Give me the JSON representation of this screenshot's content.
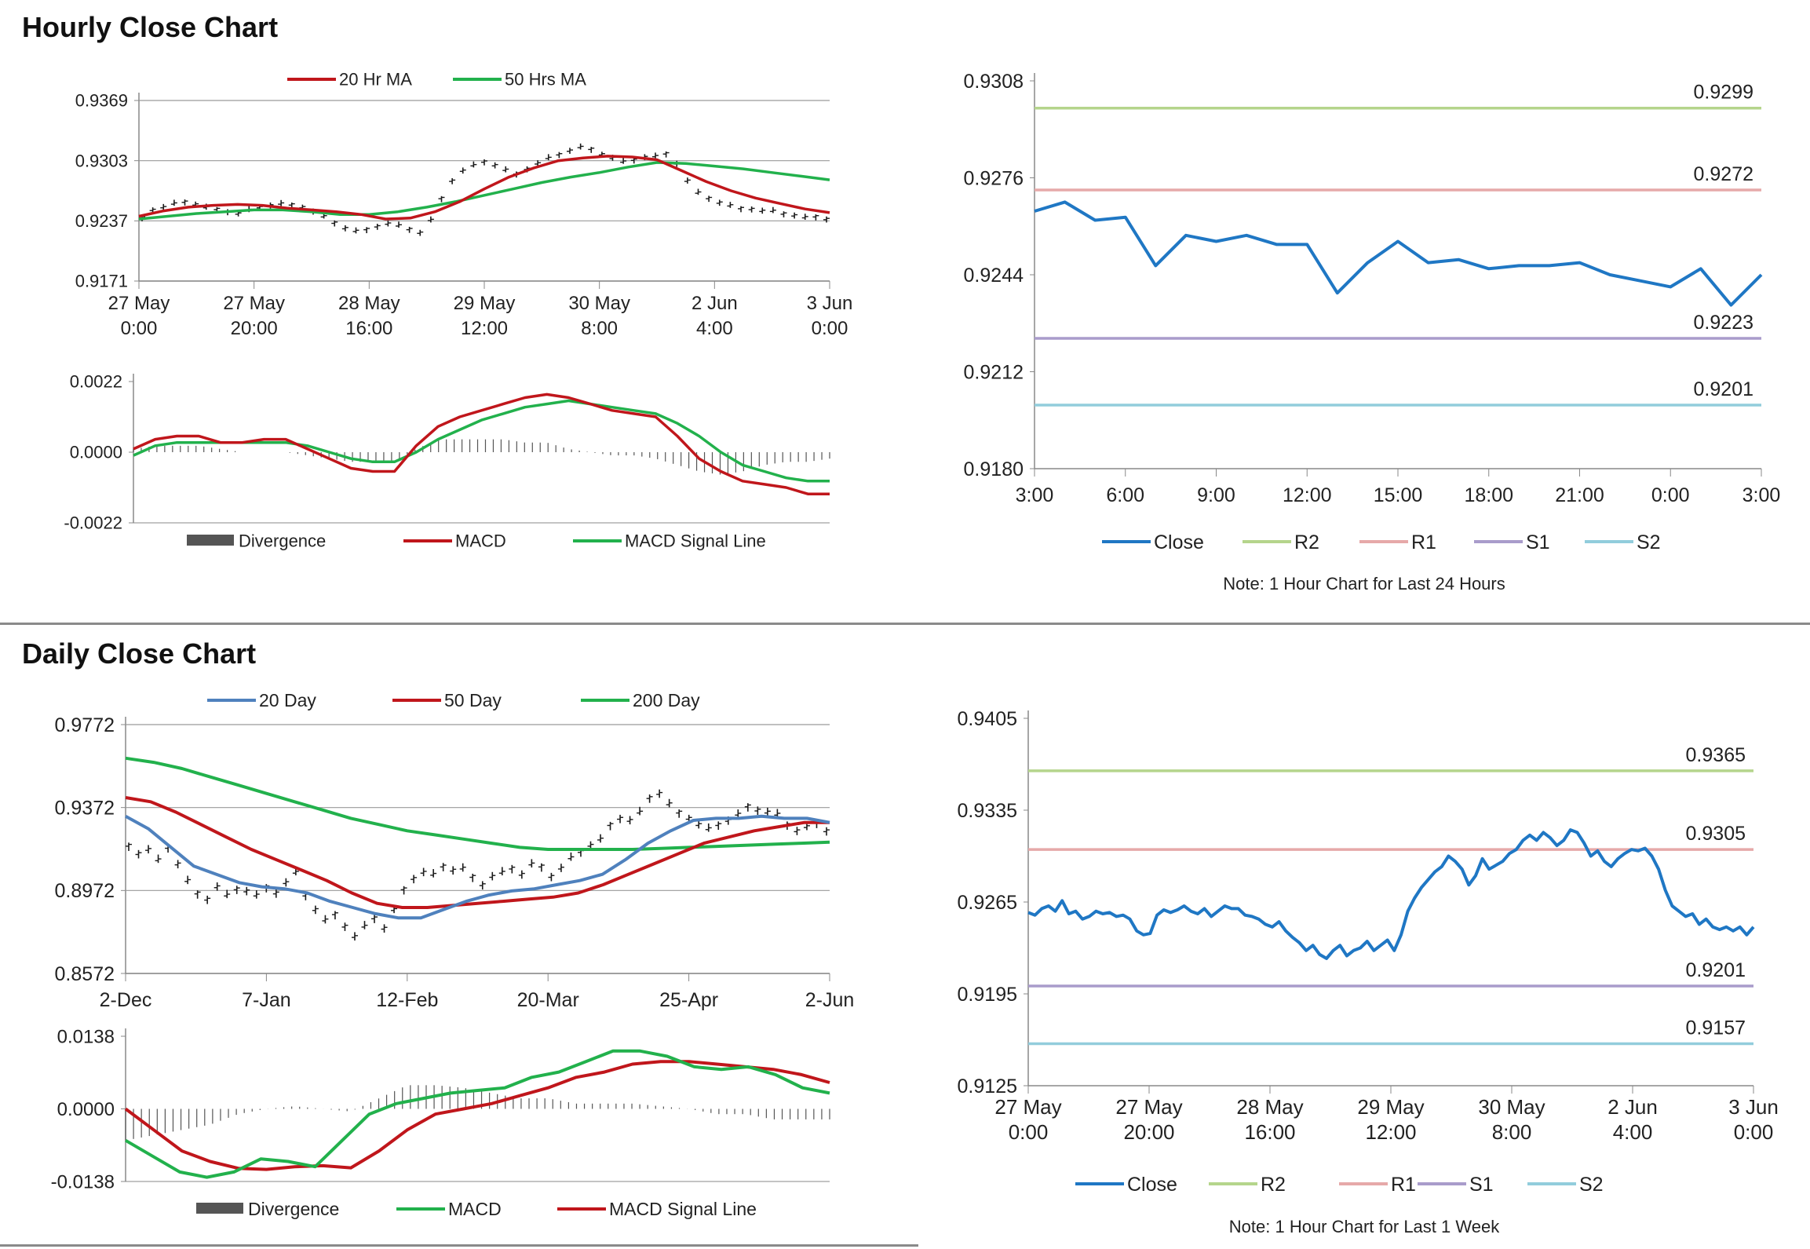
{
  "sections": {
    "hourly_title": "Hourly Close Chart",
    "daily_title": "Daily Close Chart"
  },
  "chart_data": [
    {
      "id": "hourly_price",
      "type": "line",
      "yticks": [
        "0.9369",
        "0.9303",
        "0.9237",
        "0.9171"
      ],
      "ylim": [
        0.9171,
        0.9369
      ],
      "xticks": [
        [
          "27 May",
          "0:00"
        ],
        [
          "27 May",
          "20:00"
        ],
        [
          "28 May",
          "16:00"
        ],
        [
          "29 May",
          "12:00"
        ],
        [
          "30 May",
          "8:00"
        ],
        [
          "2 Jun",
          "4:00"
        ],
        [
          "3 Jun",
          "0:00"
        ]
      ],
      "legend": [
        "20 Hr MA",
        "50 Hrs MA"
      ],
      "colors": {
        "ma20": "#c0161b",
        "ma50": "#22b14c",
        "price": "#1a1a1a"
      },
      "series": [
        {
          "name": "Close (bars)",
          "values": [
            0.9241,
            0.9249,
            0.9252,
            0.9256,
            0.9258,
            0.9255,
            0.9252,
            0.925,
            0.9247,
            0.9245,
            0.9249,
            0.9252,
            0.9254,
            0.9256,
            0.9255,
            0.9252,
            0.9247,
            0.9242,
            0.9235,
            0.9229,
            0.9226,
            0.9228,
            0.9231,
            0.9234,
            0.9232,
            0.9228,
            0.9224,
            0.9238,
            0.9262,
            0.9281,
            0.9292,
            0.9298,
            0.9302,
            0.9298,
            0.9293,
            0.9289,
            0.9294,
            0.93,
            0.9306,
            0.931,
            0.9314,
            0.9318,
            0.9316,
            0.931,
            0.9306,
            0.9302,
            0.9304,
            0.9307,
            0.9308,
            0.9311,
            0.93,
            0.9281,
            0.9268,
            0.9262,
            0.9257,
            0.9254,
            0.9251,
            0.925,
            0.9248,
            0.9248,
            0.9245,
            0.9243,
            0.9241,
            0.9242,
            0.9239
          ]
        },
        {
          "name": "20 Hr MA",
          "values": [
            0.9242,
            0.9248,
            0.9252,
            0.9254,
            0.9255,
            0.9254,
            0.9251,
            0.9249,
            0.9247,
            0.9244,
            0.9239,
            0.924,
            0.9247,
            0.9258,
            0.9272,
            0.9285,
            0.9295,
            0.9303,
            0.9306,
            0.9308,
            0.9307,
            0.9304,
            0.9292,
            0.928,
            0.927,
            0.9262,
            0.9256,
            0.925,
            0.9246
          ]
        },
        {
          "name": "50 Hrs MA",
          "values": [
            0.9239,
            0.9242,
            0.9245,
            0.9247,
            0.9249,
            0.9249,
            0.9247,
            0.9244,
            0.9244,
            0.9247,
            0.9252,
            0.9258,
            0.9265,
            0.9272,
            0.9279,
            0.9285,
            0.929,
            0.9296,
            0.9301,
            0.93,
            0.9297,
            0.9294,
            0.929,
            0.9286,
            0.9282
          ]
        }
      ]
    },
    {
      "id": "hourly_macd",
      "type": "line",
      "yticks": [
        "0.0022",
        "0.0000",
        "-0.0022"
      ],
      "ylim": [
        -0.0022,
        0.0022
      ],
      "legend": [
        "Divergence",
        "MACD",
        "MACD Signal Line"
      ],
      "colors": {
        "divergence": "#555555",
        "macd": "#c0161b",
        "signal": "#22b14c"
      },
      "series": [
        {
          "name": "MACD",
          "values": [
            0.0001,
            0.0004,
            0.0005,
            0.0005,
            0.0003,
            0.0003,
            0.0004,
            0.0004,
            0.0001,
            -0.0002,
            -0.0005,
            -0.0006,
            -0.0006,
            0.0002,
            0.0008,
            0.0011,
            0.0013,
            0.0015,
            0.0017,
            0.0018,
            0.0017,
            0.0015,
            0.0013,
            0.0012,
            0.0011,
            0.0005,
            -0.0002,
            -0.0006,
            -0.0009,
            -0.001,
            -0.0011,
            -0.0013,
            -0.0013
          ]
        },
        {
          "name": "MACD Signal Line",
          "values": [
            -0.0001,
            0.0002,
            0.0003,
            0.0003,
            0.0003,
            0.0003,
            0.0003,
            0.0003,
            0.0002,
            0.0,
            -0.0002,
            -0.0003,
            -0.0003,
            0.0,
            0.0004,
            0.0007,
            0.001,
            0.0012,
            0.0014,
            0.0015,
            0.0016,
            0.0015,
            0.0014,
            0.0013,
            0.0012,
            0.0009,
            0.0005,
            0.0,
            -0.0004,
            -0.0006,
            -0.0008,
            -0.0009,
            -0.0009
          ]
        },
        {
          "name": "Divergence",
          "values": [
            0.0001,
            0.0002,
            0.0002,
            0.0002,
            0.0001,
            0.0,
            0.0,
            0.0,
            -0.0001,
            -0.0002,
            -0.0003,
            -0.0003,
            -0.0003,
            0.0001,
            0.0004,
            0.0004,
            0.0004,
            0.0004,
            0.0003,
            0.0003,
            0.0001,
            0.0,
            -0.0001,
            -0.0001,
            -0.0002,
            -0.0004,
            -0.0006,
            -0.0007,
            -0.0006,
            -0.0004,
            -0.0003,
            -0.0003,
            -0.0002
          ]
        }
      ]
    },
    {
      "id": "hourly_24h",
      "type": "line",
      "yticks": [
        "0.9308",
        "0.9276",
        "0.9244",
        "0.9212",
        "0.9180"
      ],
      "ylim": [
        0.918,
        0.9308
      ],
      "xticks": [
        "3:00",
        "6:00",
        "9:00",
        "12:00",
        "15:00",
        "18:00",
        "21:00",
        "0:00",
        "3:00"
      ],
      "levels": [
        {
          "name": "R2",
          "value": 0.9299,
          "label": "0.9299",
          "color": "#b5d58c"
        },
        {
          "name": "R1",
          "value": 0.9272,
          "label": "0.9272",
          "color": "#e6a9a9"
        },
        {
          "name": "S1",
          "value": 0.9223,
          "label": "0.9223",
          "color": "#a99ccb"
        },
        {
          "name": "S2",
          "value": 0.9201,
          "label": "0.9201",
          "color": "#92cddc"
        }
      ],
      "legend": [
        "Close",
        "R2",
        "R1",
        "S1",
        "S2"
      ],
      "note": "Note: 1 Hour Chart for Last 24 Hours",
      "colors": {
        "close": "#1f77c4"
      },
      "series": [
        {
          "name": "Close",
          "values": [
            0.9265,
            0.9268,
            0.9262,
            0.9263,
            0.9247,
            0.9257,
            0.9255,
            0.9257,
            0.9254,
            0.9254,
            0.9238,
            0.9248,
            0.9255,
            0.9248,
            0.9249,
            0.9246,
            0.9247,
            0.9247,
            0.9248,
            0.9244,
            0.9242,
            0.924,
            0.9246,
            0.9234,
            0.9244
          ]
        }
      ]
    },
    {
      "id": "daily_price",
      "type": "line",
      "yticks": [
        "0.9772",
        "0.9372",
        "0.8972",
        "0.8572"
      ],
      "ylim": [
        0.8572,
        0.9772
      ],
      "xticks": [
        "2-Dec",
        "7-Jan",
        "12-Feb",
        "20-Mar",
        "25-Apr",
        "2-Jun"
      ],
      "legend": [
        "20 Day",
        "50 Day",
        "200 Day"
      ],
      "colors": {
        "d20": "#4f81bd",
        "d50": "#c0161b",
        "d200": "#22b14c",
        "price": "#1a1a1a"
      },
      "series": [
        {
          "name": "Close (bars)",
          "values": [
            0.919,
            0.915,
            0.917,
            0.912,
            0.918,
            0.91,
            0.902,
            0.896,
            0.893,
            0.899,
            0.895,
            0.898,
            0.897,
            0.895,
            0.899,
            0.896,
            0.901,
            0.906,
            0.895,
            0.888,
            0.883,
            0.886,
            0.88,
            0.875,
            0.88,
            0.884,
            0.879,
            0.888,
            0.898,
            0.903,
            0.906,
            0.905,
            0.909,
            0.907,
            0.908,
            0.904,
            0.9,
            0.904,
            0.906,
            0.908,
            0.905,
            0.91,
            0.909,
            0.904,
            0.908,
            0.913,
            0.916,
            0.919,
            0.922,
            0.929,
            0.932,
            0.931,
            0.935,
            0.942,
            0.944,
            0.939,
            0.935,
            0.932,
            0.929,
            0.927,
            0.929,
            0.931,
            0.934,
            0.938,
            0.936,
            0.935,
            0.934,
            0.929,
            0.926,
            0.928,
            0.93,
            0.926
          ]
        },
        {
          "name": "20 Day",
          "values": [
            0.933,
            0.927,
            0.918,
            0.909,
            0.905,
            0.901,
            0.899,
            0.898,
            0.896,
            0.892,
            0.889,
            0.886,
            0.884,
            0.884,
            0.888,
            0.892,
            0.895,
            0.897,
            0.898,
            0.9,
            0.902,
            0.905,
            0.912,
            0.92,
            0.926,
            0.931,
            0.932,
            0.932,
            0.933,
            0.932,
            0.932,
            0.93
          ]
        },
        {
          "name": "50 Day",
          "values": [
            0.942,
            0.94,
            0.935,
            0.929,
            0.923,
            0.917,
            0.912,
            0.907,
            0.902,
            0.896,
            0.891,
            0.889,
            0.889,
            0.89,
            0.891,
            0.892,
            0.893,
            0.894,
            0.896,
            0.9,
            0.905,
            0.91,
            0.915,
            0.92,
            0.923,
            0.926,
            0.928,
            0.93,
            0.93
          ]
        },
        {
          "name": "200 Day",
          "values": [
            0.961,
            0.959,
            0.956,
            0.952,
            0.948,
            0.944,
            0.94,
            0.936,
            0.932,
            0.929,
            0.926,
            0.924,
            0.922,
            0.92,
            0.918,
            0.917,
            0.917,
            0.917,
            0.917,
            0.9175,
            0.918,
            0.9185,
            0.919,
            0.9195,
            0.92,
            0.9205
          ]
        }
      ]
    },
    {
      "id": "daily_macd",
      "type": "line",
      "yticks": [
        "0.0138",
        "0.0000",
        "-0.0138"
      ],
      "ylim": [
        -0.0138,
        0.0138
      ],
      "legend": [
        "Divergence",
        "MACD",
        "MACD Signal Line"
      ],
      "colors": {
        "divergence": "#555555",
        "macd": "#22b14c",
        "signal": "#c0161b"
      },
      "series": [
        {
          "name": "MACD",
          "values": [
            -0.006,
            -0.009,
            -0.012,
            -0.013,
            -0.012,
            -0.0095,
            -0.01,
            -0.011,
            -0.006,
            -0.001,
            0.001,
            0.002,
            0.003,
            0.0035,
            0.004,
            0.006,
            0.007,
            0.009,
            0.011,
            0.011,
            0.01,
            0.008,
            0.0075,
            0.008,
            0.0065,
            0.004,
            0.003
          ]
        },
        {
          "name": "MACD Signal Line",
          "values": [
            0.0,
            -0.004,
            -0.008,
            -0.01,
            -0.0113,
            -0.0115,
            -0.011,
            -0.0108,
            -0.0112,
            -0.008,
            -0.004,
            -0.001,
            0.0,
            0.001,
            0.0025,
            0.004,
            0.006,
            0.007,
            0.0085,
            0.009,
            0.009,
            0.0085,
            0.008,
            0.0075,
            0.0065,
            0.005
          ]
        },
        {
          "name": "Divergence",
          "values": [
            -0.006,
            -0.005,
            -0.004,
            -0.003,
            -0.001,
            0.0,
            0.0005,
            0.0,
            -0.0005,
            0.002,
            0.0045,
            0.0045,
            0.004,
            0.003,
            0.002,
            0.002,
            0.001,
            0.001,
            0.001,
            0.0005,
            0.0,
            -0.001,
            -0.001,
            -0.002,
            -0.002,
            -0.002
          ]
        }
      ]
    },
    {
      "id": "daily_week",
      "type": "line",
      "yticks": [
        "0.9405",
        "0.9335",
        "0.9265",
        "0.9195",
        "0.9125"
      ],
      "ylim": [
        0.9125,
        0.9405
      ],
      "xticks": [
        [
          "27 May",
          "0:00"
        ],
        [
          "27 May",
          "20:00"
        ],
        [
          "28 May",
          "16:00"
        ],
        [
          "29 May",
          "12:00"
        ],
        [
          "30 May",
          "8:00"
        ],
        [
          "2 Jun",
          "4:00"
        ],
        [
          "3 Jun",
          "0:00"
        ]
      ],
      "levels": [
        {
          "name": "R2",
          "value": 0.9365,
          "label": "0.9365",
          "color": "#b5d58c"
        },
        {
          "name": "R1",
          "value": 0.9305,
          "label": "0.9305",
          "color": "#e6a9a9"
        },
        {
          "name": "S1",
          "value": 0.9201,
          "label": "0.9201",
          "color": "#a99ccb"
        },
        {
          "name": "S2",
          "value": 0.9157,
          "label": "0.9157",
          "color": "#92cddc"
        }
      ],
      "legend": [
        "Close",
        "R2",
        "R1",
        "S1",
        "S2"
      ],
      "note": "Note: 1 Hour Chart for Last 1 Week",
      "colors": {
        "close": "#1f77c4"
      },
      "series": [
        {
          "name": "Close",
          "values": [
            0.9257,
            0.9255,
            0.926,
            0.9262,
            0.9258,
            0.9266,
            0.9256,
            0.9258,
            0.9252,
            0.9254,
            0.9258,
            0.9256,
            0.9257,
            0.9254,
            0.9255,
            0.9252,
            0.9243,
            0.924,
            0.9241,
            0.9255,
            0.9259,
            0.9257,
            0.9259,
            0.9262,
            0.9258,
            0.9256,
            0.926,
            0.9254,
            0.9258,
            0.9262,
            0.926,
            0.926,
            0.9255,
            0.9254,
            0.9252,
            0.9248,
            0.9246,
            0.925,
            0.9243,
            0.9238,
            0.9234,
            0.9228,
            0.9232,
            0.9225,
            0.9222,
            0.9228,
            0.9232,
            0.9224,
            0.9228,
            0.923,
            0.9235,
            0.9228,
            0.9232,
            0.9236,
            0.9228,
            0.924,
            0.9258,
            0.9268,
            0.9276,
            0.9282,
            0.9288,
            0.9292,
            0.93,
            0.9296,
            0.929,
            0.9278,
            0.9285,
            0.9298,
            0.929,
            0.9293,
            0.9296,
            0.9302,
            0.9305,
            0.9312,
            0.9316,
            0.9312,
            0.9318,
            0.9314,
            0.9308,
            0.9312,
            0.932,
            0.9318,
            0.931,
            0.93,
            0.9304,
            0.9296,
            0.9292,
            0.9298,
            0.9302,
            0.9305,
            0.9304,
            0.9306,
            0.93,
            0.929,
            0.9274,
            0.9262,
            0.9258,
            0.9254,
            0.9256,
            0.9248,
            0.9252,
            0.9246,
            0.9244,
            0.9246,
            0.9243,
            0.9246,
            0.924,
            0.9246
          ]
        }
      ]
    }
  ]
}
